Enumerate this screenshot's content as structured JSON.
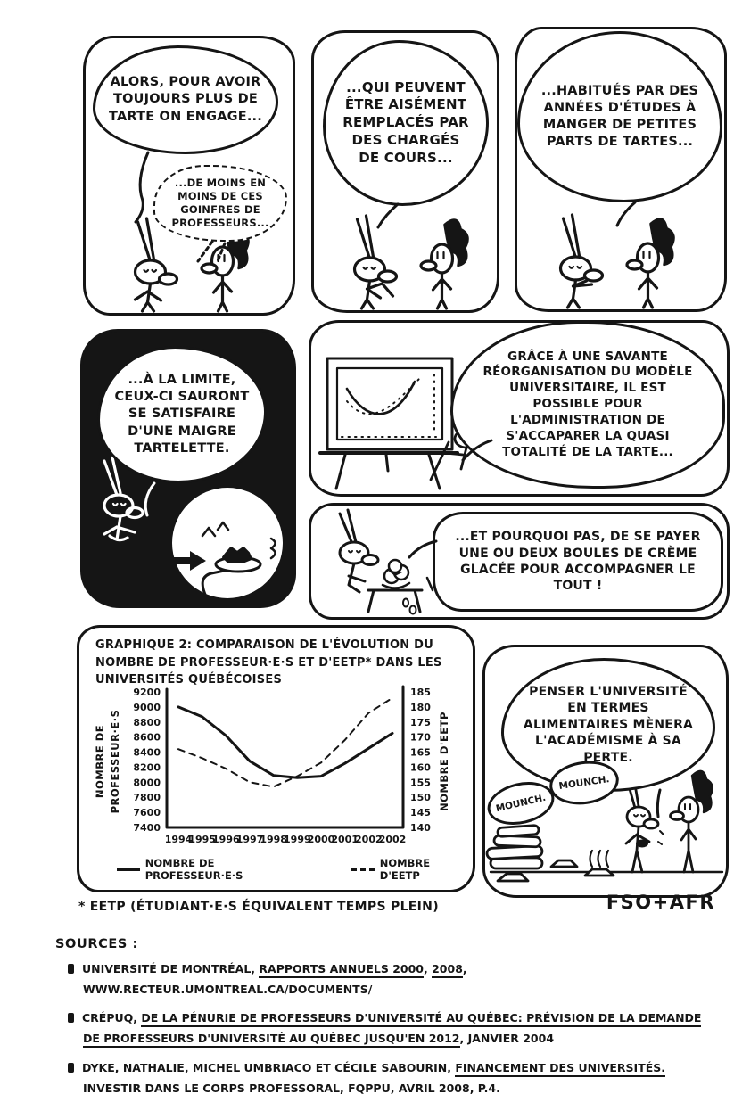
{
  "colors": {
    "ink": "#151515",
    "paper": "#ffffff"
  },
  "panels": {
    "p1": {
      "bubble": "ALORS, POUR AVOIR TOUJOURS PLUS DE TARTE ON ENGAGE...",
      "bubble2": "...DE MOINS EN MOINS DE CES GOINFRES DE PROFESSEURS..."
    },
    "p2": {
      "bubble": "...QUI PEUVENT ÊTRE AISÉMENT REMPLACÉS PAR DES CHARGÉS DE COURS..."
    },
    "p3": {
      "bubble": "...HABITUÉS PAR DES ANNÉES D'ÉTUDES À MANGER DE PETITES PARTS DE TARTES..."
    },
    "p4": {
      "bubble": "...À LA LIMITE, CEUX-CI SAURONT SE SATISFAIRE D'UNE MAIGRE TARTELETTE."
    },
    "p5": {
      "bubble": "GRÂCE À UNE SAVANTE RÉORGANISATION DU MODÈLE UNIVERSITAIRE, IL EST POSSIBLE POUR L'ADMINISTRATION DE S'ACCAPARER LA QUASI TOTALITÉ DE LA TARTE..."
    },
    "p6": {
      "bubble": "...ET POURQUOI PAS, DE SE PAYER UNE OU DEUX BOULES DE CRÈME GLACÉE POUR ACCOMPAGNER LE TOUT !"
    },
    "p8": {
      "bubble": "PENSER L'UNIVERSITÉ EN TERMES ALIMENTAIRES MÈNERA L'ACADÉMISME À SA PERTE.",
      "mounch1": "MOUNCH.",
      "mounch2": "MOUNCH."
    }
  },
  "chart_data": {
    "type": "line",
    "title": "GRAPHIQUE 2: COMPARAISON DE L'ÉVOLUTION DU NOMBRE DE PROFESSEUR·E·S ET D'EETP* DANS LES UNIVERSITÉS QUÉBÉCOISES",
    "categories": [
      "1994",
      "1995",
      "1996",
      "1997",
      "1998",
      "1999",
      "2000",
      "2001",
      "2002",
      "2002"
    ],
    "series": [
      {
        "name": "NOMBRE DE PROFESSEUR·E·S",
        "axis": "left",
        "style": "solid",
        "values": [
          9000,
          8870,
          8620,
          8280,
          8090,
          8060,
          8080,
          8250,
          8450,
          8650
        ]
      },
      {
        "name": "NOMBRE D'EETP",
        "axis": "right",
        "style": "dashed",
        "values": [
          166,
          163,
          159.5,
          155,
          153.5,
          157,
          161.5,
          169,
          178,
          183
        ]
      }
    ],
    "left_axis": {
      "label": "NOMBRE DE PROFESSEUR·E·S",
      "label_lines": [
        "NOMBRE DE",
        "PROFESSEUR·E·S"
      ],
      "ticks": [
        9200,
        9000,
        8800,
        8600,
        8400,
        8200,
        8000,
        7800,
        7600,
        7400
      ],
      "min": 7400,
      "max": 9200
    },
    "right_axis": {
      "label": "NOMBRE D'EETP",
      "label_lines": [
        "NOMBRE D'EETP"
      ],
      "ticks": [
        185,
        180,
        175,
        170,
        165,
        160,
        155,
        150,
        145,
        140
      ],
      "min": 140,
      "max": 185
    },
    "legend": [
      {
        "style": "solid",
        "label": "NOMBRE DE PROFESSEUR·E·S"
      },
      {
        "style": "dashed",
        "label": "NOMBRE D'EETP"
      }
    ],
    "grid": false,
    "legend_position": "bottom"
  },
  "footnote": "* EETP (ÉTUDIANT·E·S ÉQUIVALENT TEMPS PLEIN)",
  "signature": "FSO+AFR",
  "sources": {
    "heading": "SOURCES :",
    "items": [
      [
        {
          "t": "UNIVERSITÉ DE MONTRÉAL, "
        },
        {
          "t": "RAPPORTS ANNUELS 2000",
          "u": true
        },
        {
          "t": ", "
        },
        {
          "t": "2008",
          "u": true
        },
        {
          "t": ", WWW.RECTEUR.UMONTREAL.CA/DOCUMENTS/"
        }
      ],
      [
        {
          "t": "CRÉPUQ, "
        },
        {
          "t": "DE LA PÉNURIE DE PROFESSEURS D'UNIVERSITÉ AU QUÉBEC: PRÉVISION DE LA DEMANDE DE PROFESSEURS D'UNIVERSITÉ AU QUÉBEC JUSQU'EN 2012",
          "u": true
        },
        {
          "t": ", JANVIER 2004"
        }
      ],
      [
        {
          "t": "DYKE, NATHALIE, MICHEL UMBRIACO ET CÉCILE SABOURIN, "
        },
        {
          "t": "FINANCEMENT DES UNIVERSITÉS. ",
          "u": true
        },
        {
          "t": "INVESTIR DANS LE CORPS PROFESSORAL",
          "u": true
        },
        {
          "t": ", FQPPU, AVRIL 2008, P.4."
        }
      ]
    ]
  }
}
